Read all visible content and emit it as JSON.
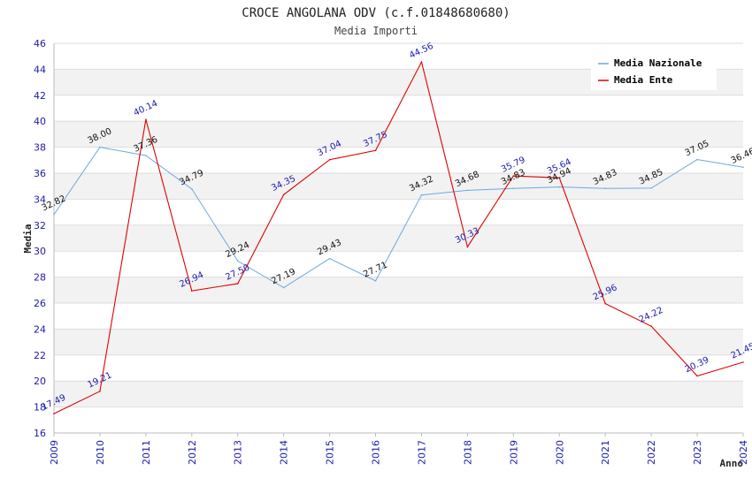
{
  "header": {
    "title": "CROCE ANGOLANA ODV (c.f.01848680680)",
    "subtitle": "Media Importi"
  },
  "chart_data": {
    "type": "line",
    "x": [
      "2009",
      "2010",
      "2011",
      "2012",
      "2013",
      "2014",
      "2015",
      "2016",
      "2017",
      "2018",
      "2019",
      "2020",
      "2021",
      "2022",
      "2023",
      "2024"
    ],
    "series": [
      {
        "name": "Media Nazionale",
        "color": "#6aa9e0",
        "values": [
          32.82,
          38.0,
          37.36,
          34.79,
          29.24,
          27.19,
          29.43,
          27.71,
          34.32,
          34.68,
          34.83,
          34.94,
          34.83,
          34.85,
          37.05,
          36.46
        ]
      },
      {
        "name": "Media Ente",
        "color": "#e00000",
        "values": [
          17.49,
          19.21,
          40.14,
          26.94,
          27.5,
          34.35,
          37.04,
          37.75,
          44.56,
          30.33,
          35.79,
          35.64,
          25.96,
          24.22,
          20.39,
          21.45
        ]
      }
    ],
    "ylim": [
      16,
      46
    ],
    "ytick_step": 2,
    "xlabel": "Anno",
    "ylabel": "Media",
    "grid": true,
    "legend_position": "top-right"
  }
}
